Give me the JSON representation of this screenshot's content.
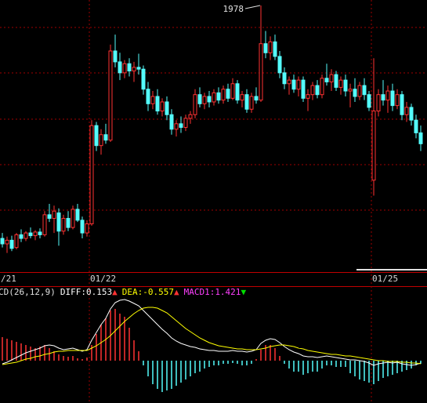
{
  "chart_data": [
    {
      "type": "candlestick",
      "categories": [
        "/21",
        null,
        null,
        null,
        null,
        null,
        null,
        null,
        null,
        null,
        null,
        null,
        null,
        null,
        null,
        null,
        null,
        null,
        null,
        "01/22",
        null,
        null,
        null,
        null,
        null,
        null,
        null,
        null,
        null,
        null,
        null,
        null,
        null,
        null,
        null,
        null,
        null,
        null,
        null,
        null,
        null,
        null,
        null,
        null,
        null,
        null,
        null,
        null,
        null,
        null,
        null,
        null,
        null,
        null,
        null,
        null,
        null,
        null,
        null,
        null,
        null,
        null,
        null,
        null,
        null,
        null,
        null,
        null,
        null,
        null,
        null,
        null,
        null,
        null,
        null,
        null,
        null,
        null,
        null,
        "01/25",
        null,
        null,
        null,
        null,
        null,
        null,
        null,
        null,
        null,
        null
      ],
      "ohlc": [
        [
          1722,
          1728,
          1712,
          1716
        ],
        [
          1716,
          1724,
          1706,
          1720
        ],
        [
          1720,
          1725,
          1708,
          1711
        ],
        [
          1712,
          1728,
          1710,
          1726
        ],
        [
          1726,
          1732,
          1718,
          1722
        ],
        [
          1722,
          1730,
          1719,
          1728
        ],
        [
          1728,
          1734,
          1722,
          1725
        ],
        [
          1725,
          1731,
          1720,
          1729
        ],
        [
          1729,
          1733,
          1722,
          1726
        ],
        [
          1726,
          1752,
          1724,
          1748
        ],
        [
          1748,
          1760,
          1740,
          1744
        ],
        [
          1744,
          1758,
          1728,
          1752
        ],
        [
          1750,
          1755,
          1714,
          1730
        ],
        [
          1730,
          1748,
          1726,
          1744
        ],
        [
          1744,
          1752,
          1730,
          1734
        ],
        [
          1734,
          1758,
          1732,
          1754
        ],
        [
          1754,
          1760,
          1740,
          1742
        ],
        [
          1742,
          1746,
          1722,
          1728
        ],
        [
          1728,
          1742,
          1724,
          1738
        ],
        [
          1738,
          1852,
          1736,
          1846
        ],
        [
          1846,
          1850,
          1818,
          1824
        ],
        [
          1824,
          1842,
          1814,
          1836
        ],
        [
          1836,
          1848,
          1826,
          1830
        ],
        [
          1830,
          1935,
          1828,
          1928
        ],
        [
          1928,
          1946,
          1910,
          1916
        ],
        [
          1916,
          1926,
          1896,
          1904
        ],
        [
          1904,
          1918,
          1898,
          1914
        ],
        [
          1914,
          1920,
          1900,
          1906
        ],
        [
          1906,
          1916,
          1894,
          1910
        ],
        [
          1910,
          1925,
          1902,
          1908
        ],
        [
          1908,
          1912,
          1880,
          1886
        ],
        [
          1886,
          1894,
          1862,
          1870
        ],
        [
          1870,
          1884,
          1864,
          1878
        ],
        [
          1878,
          1886,
          1858,
          1862
        ],
        [
          1862,
          1876,
          1856,
          1872
        ],
        [
          1872,
          1878,
          1852,
          1858
        ],
        [
          1858,
          1864,
          1836,
          1842
        ],
        [
          1842,
          1852,
          1834,
          1848
        ],
        [
          1848,
          1856,
          1838,
          1844
        ],
        [
          1844,
          1858,
          1840,
          1854
        ],
        [
          1854,
          1862,
          1848,
          1858
        ],
        [
          1858,
          1886,
          1854,
          1880
        ],
        [
          1880,
          1888,
          1866,
          1870
        ],
        [
          1870,
          1882,
          1864,
          1878
        ],
        [
          1878,
          1884,
          1866,
          1872
        ],
        [
          1872,
          1886,
          1868,
          1882
        ],
        [
          1882,
          1888,
          1870,
          1874
        ],
        [
          1874,
          1890,
          1870,
          1886
        ],
        [
          1886,
          1892,
          1872,
          1876
        ],
        [
          1876,
          1898,
          1874,
          1892
        ],
        [
          1892,
          1896,
          1870,
          1874
        ],
        [
          1874,
          1884,
          1866,
          1880
        ],
        [
          1880,
          1886,
          1860,
          1864
        ],
        [
          1864,
          1882,
          1860,
          1878
        ],
        [
          1878,
          1888,
          1870,
          1874
        ],
        [
          1874,
          1978,
          1872,
          1936
        ],
        [
          1936,
          1950,
          1920,
          1926
        ],
        [
          1926,
          1944,
          1918,
          1938
        ],
        [
          1938,
          1946,
          1918,
          1922
        ],
        [
          1922,
          1928,
          1898,
          1904
        ],
        [
          1904,
          1910,
          1886,
          1892
        ],
        [
          1892,
          1900,
          1880,
          1896
        ],
        [
          1896,
          1902,
          1882,
          1886
        ],
        [
          1886,
          1900,
          1878,
          1896
        ],
        [
          1896,
          1900,
          1872,
          1876
        ],
        [
          1876,
          1886,
          1862,
          1880
        ],
        [
          1880,
          1894,
          1874,
          1890
        ],
        [
          1890,
          1896,
          1876,
          1880
        ],
        [
          1880,
          1902,
          1876,
          1898
        ],
        [
          1898,
          1914,
          1890,
          1894
        ],
        [
          1894,
          1908,
          1884,
          1902
        ],
        [
          1902,
          1906,
          1884,
          1888
        ],
        [
          1888,
          1900,
          1880,
          1896
        ],
        [
          1896,
          1902,
          1878,
          1884
        ],
        [
          1884,
          1892,
          1866,
          1886
        ],
        [
          1886,
          1898,
          1872,
          1878
        ],
        [
          1878,
          1894,
          1874,
          1890
        ],
        [
          1890,
          1898,
          1874,
          1880
        ],
        [
          1880,
          1884,
          1862,
          1866
        ],
        [
          1786,
          1920,
          1769,
          1862
        ],
        [
          1862,
          1886,
          1856,
          1880
        ],
        [
          1880,
          1896,
          1868,
          1874
        ],
        [
          1874,
          1890,
          1860,
          1884
        ],
        [
          1884,
          1892,
          1862,
          1868
        ],
        [
          1868,
          1886,
          1864,
          1880
        ],
        [
          1880,
          1884,
          1852,
          1858
        ],
        [
          1858,
          1872,
          1850,
          1866
        ],
        [
          1866,
          1870,
          1846,
          1852
        ],
        [
          1852,
          1858,
          1832,
          1838
        ],
        [
          1838,
          1846,
          1818,
          1826
        ]
      ],
      "ylim": [
        1685,
        1984
      ],
      "up_color": "#ff3232",
      "down_color": "#54fcfc"
    },
    {
      "type": "macd",
      "indicator": "CD(26,12,9)",
      "ylim": [
        -5.4,
        9.5
      ],
      "up_color": "#ff3232",
      "down_color": "#54fcfc",
      "series": [
        {
          "name": "DIFF:0.153",
          "color": "#ffffff",
          "arrow": "▲",
          "arrow_color": "#ff3232",
          "values": [
            -0.4,
            -0.2,
            0.1,
            0.4,
            0.7,
            1.0,
            1.2,
            1.4,
            1.6,
            1.9,
            2.0,
            1.9,
            1.6,
            1.4,
            1.5,
            1.6,
            1.4,
            1.2,
            1.4,
            2.6,
            3.6,
            4.6,
            5.4,
            6.6,
            7.4,
            7.7,
            7.8,
            7.6,
            7.3,
            7.0,
            6.4,
            5.8,
            5.2,
            4.6,
            4.0,
            3.5,
            2.9,
            2.5,
            2.2,
            2.0,
            1.8,
            1.7,
            1.5,
            1.4,
            1.3,
            1.3,
            1.2,
            1.2,
            1.2,
            1.3,
            1.2,
            1.2,
            1.1,
            1.2,
            1.4,
            2.2,
            2.6,
            2.8,
            2.7,
            2.3,
            1.8,
            1.4,
            1.1,
            0.9,
            0.6,
            0.5,
            0.5,
            0.4,
            0.5,
            0.6,
            0.5,
            0.4,
            0.3,
            0.2,
            0.1,
            0.1,
            0.0,
            -0.1,
            -0.3,
            -0.6,
            -0.4,
            -0.3,
            -0.2,
            -0.3,
            -0.2,
            -0.4,
            -0.5,
            -0.6,
            -0.5,
            -0.3
          ]
        },
        {
          "name": "DEA:-0.557",
          "color": "#ffff00",
          "arrow": "▲",
          "arrow_color": "#ff3232",
          "values": [
            -0.5,
            -0.4,
            -0.3,
            -0.2,
            0.0,
            0.2,
            0.3,
            0.5,
            0.6,
            0.8,
            0.9,
            1.1,
            1.2,
            1.2,
            1.3,
            1.3,
            1.3,
            1.3,
            1.3,
            1.6,
            1.9,
            2.3,
            2.7,
            3.2,
            3.8,
            4.4,
            5.0,
            5.5,
            6.0,
            6.4,
            6.7,
            6.8,
            6.8,
            6.7,
            6.4,
            6.1,
            5.6,
            5.1,
            4.6,
            4.1,
            3.7,
            3.3,
            2.9,
            2.6,
            2.3,
            2.1,
            1.9,
            1.8,
            1.7,
            1.6,
            1.5,
            1.5,
            1.4,
            1.4,
            1.4,
            1.5,
            1.6,
            1.8,
            1.9,
            2.0,
            2.0,
            1.9,
            1.8,
            1.6,
            1.5,
            1.3,
            1.2,
            1.1,
            1.0,
            0.9,
            0.8,
            0.8,
            0.7,
            0.6,
            0.6,
            0.5,
            0.4,
            0.3,
            0.2,
            0.1,
            0.0,
            0.0,
            -0.1,
            -0.1,
            -0.1,
            -0.2,
            -0.2,
            -0.3,
            -0.3,
            -0.4
          ]
        },
        {
          "name": "MACD1:1.421",
          "color": "#ff40ff",
          "arrow": "▼",
          "arrow_color": "#00e000",
          "histogram": true,
          "values": [
            3.0,
            2.8,
            2.6,
            2.4,
            2.2,
            2.0,
            1.8,
            1.6,
            1.8,
            2.0,
            1.6,
            1.2,
            0.8,
            0.6,
            0.5,
            0.6,
            0.3,
            0.2,
            0.4,
            2.0,
            3.4,
            4.6,
            5.4,
            6.4,
            6.6,
            6.0,
            5.6,
            4.2,
            2.6,
            1.2,
            -0.6,
            -2.0,
            -3.0,
            -3.6,
            -4.0,
            -3.8,
            -3.6,
            -3.2,
            -2.8,
            -2.4,
            -2.0,
            -1.6,
            -1.4,
            -1.0,
            -0.8,
            -0.6,
            -0.6,
            -0.4,
            -0.4,
            -0.3,
            -0.4,
            -0.6,
            -0.6,
            -0.4,
            0.2,
            1.4,
            2.0,
            2.0,
            1.6,
            0.6,
            -0.4,
            -1.0,
            -1.4,
            -1.4,
            -1.8,
            -1.6,
            -1.4,
            -1.4,
            -1.0,
            -0.6,
            -0.6,
            -0.8,
            -0.8,
            -0.8,
            -1.6,
            -2.0,
            -2.4,
            -2.6,
            -2.8,
            -3.0,
            -2.6,
            -2.2,
            -2.0,
            -1.8,
            -1.6,
            -1.4,
            -1.2,
            -1.0,
            -0.6,
            -0.4
          ]
        }
      ]
    }
  ]
}
